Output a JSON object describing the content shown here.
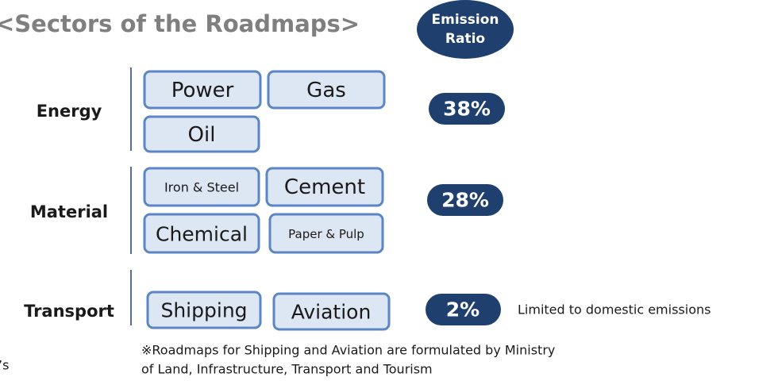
{
  "title": "<Sectors of the Roadmaps>",
  "header": {
    "line1": "Emission",
    "line2": "Ratio"
  },
  "groups": [
    {
      "label": "Energy",
      "sectors": [
        "Power",
        "Gas",
        "Oil"
      ],
      "ratio": "38%"
    },
    {
      "label": "Material",
      "sectors": [
        "Iron & Steel",
        "Cement",
        "Chemical",
        "Paper & Pulp"
      ],
      "ratio": "28%"
    },
    {
      "label": "Transport",
      "sectors": [
        "Shipping",
        "Aviation"
      ],
      "ratio": "2%",
      "note": "Limited to domestic emissions"
    }
  ],
  "footnote": {
    "line1": "※Roadmaps for Shipping and Aviation are formulated by Ministry",
    "line2": "of Land, Infrastructure, Transport and Tourism"
  },
  "fragment": "’s"
}
